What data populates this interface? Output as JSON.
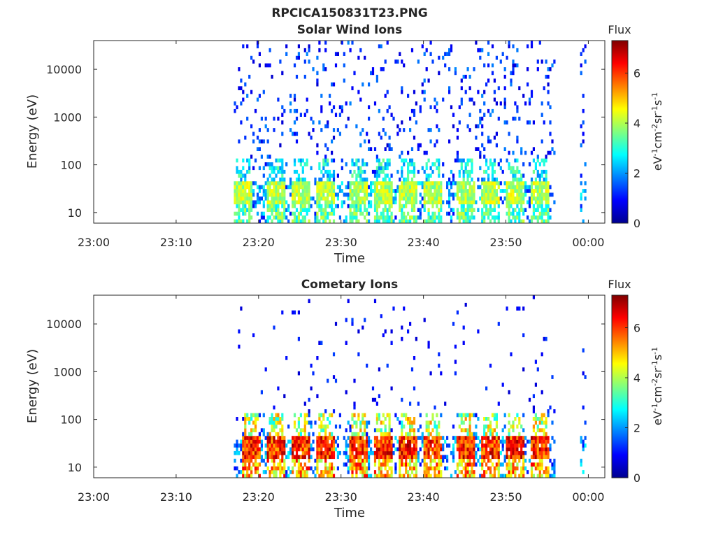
{
  "figure": {
    "title": "RPCICA150831T23.PNG"
  },
  "chart_data": [
    {
      "type": "heatmap",
      "title": "Solar Wind Ions",
      "xlabel": "Time",
      "ylabel": "Energy (eV)",
      "x_ticks": [
        "23:00",
        "23:10",
        "23:20",
        "23:30",
        "23:40",
        "23:50",
        "00:00"
      ],
      "y_ticks": [
        "10",
        "100",
        "1000",
        "10000"
      ],
      "y_scale": "log",
      "y_range": [
        6,
        40000
      ],
      "x_range": [
        "23:00",
        "00:02"
      ],
      "data_start": "23:17",
      "data_end": "23:56",
      "data_extra": "23:59",
      "bursts": [
        "23:18",
        "23:22",
        "23:25",
        "23:28",
        "23:32",
        "23:35",
        "23:38",
        "23:41",
        "23:45",
        "23:48",
        "23:51",
        "23:54"
      ],
      "peak_flux": 4.5,
      "colorbar": {
        "title": "Flux",
        "label": "eV-1cm-2sr-1s-1",
        "ticks": [
          "0",
          "2",
          "4",
          "6"
        ],
        "range": [
          0,
          7.3
        ]
      }
    },
    {
      "type": "heatmap",
      "title": "Cometary Ions",
      "xlabel": "Time",
      "ylabel": "Energy (eV)",
      "x_ticks": [
        "23:00",
        "23:10",
        "23:20",
        "23:30",
        "23:40",
        "23:50",
        "00:00"
      ],
      "y_ticks": [
        "10",
        "100",
        "1000",
        "10000"
      ],
      "y_scale": "log",
      "y_range": [
        6,
        40000
      ],
      "x_range": [
        "23:00",
        "00:02"
      ],
      "data_start": "23:17",
      "data_end": "23:56",
      "data_extra": "23:59",
      "bursts": [
        "23:19",
        "23:22",
        "23:25",
        "23:28",
        "23:32",
        "23:35",
        "23:38",
        "23:41",
        "23:45",
        "23:48",
        "23:51",
        "23:54"
      ],
      "peak_flux": 6.8,
      "colorbar": {
        "title": "Flux",
        "label": "eV-1cm-2sr-1s-1",
        "ticks": [
          "0",
          "2",
          "4",
          "6"
        ],
        "range": [
          0,
          7.3
        ]
      }
    }
  ]
}
